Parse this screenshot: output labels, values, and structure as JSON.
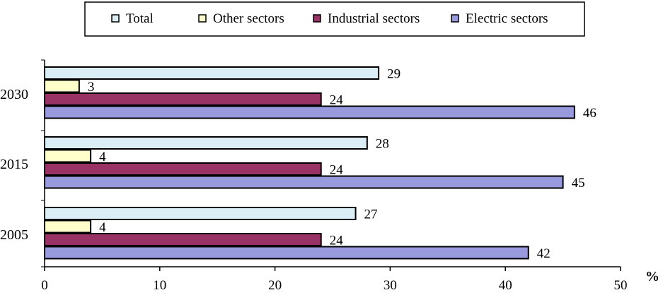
{
  "chart_data": {
    "type": "bar",
    "orientation": "horizontal",
    "categories": [
      "2030",
      "2015",
      "2005"
    ],
    "series": [
      {
        "name": "Total",
        "values": [
          29,
          28,
          27
        ],
        "color": "#DCEEF5"
      },
      {
        "name": "Other sectors",
        "values": [
          3,
          4,
          4
        ],
        "color": "#FFFFCC"
      },
      {
        "name": "Industrial sectors",
        "values": [
          24,
          24,
          24
        ],
        "color": "#993366"
      },
      {
        "name": "Electric sectors",
        "values": [
          46,
          45,
          42
        ],
        "color": "#9999DD"
      }
    ],
    "xlabel": "%",
    "ylabel": "",
    "xlim": [
      0,
      50
    ],
    "x_ticks": [
      "0",
      "10",
      "20",
      "30",
      "40",
      "50"
    ],
    "legend_position": "top",
    "grid": false,
    "data_labels": true
  }
}
